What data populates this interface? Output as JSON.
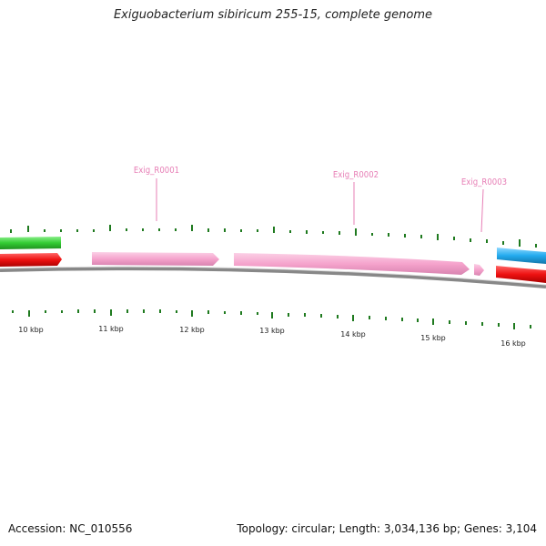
{
  "header": {
    "title": "Exiguobacterium sibiricum 255-15, complete genome"
  },
  "footer": {
    "accession": "Accession: NC_010556",
    "summary": "Topology: circular; Length: 3,034,136 bp; Genes: 3,104"
  },
  "genes": [
    {
      "label": "Exig_R0001"
    },
    {
      "label": "Exig_R0002"
    },
    {
      "label": "Exig_R0003"
    }
  ],
  "scale": {
    "labels": [
      "10 kbp",
      "11 kbp",
      "12 kbp",
      "13 kbp",
      "14 kbp",
      "15 kbp",
      "16 kbp"
    ]
  },
  "colors": {
    "rrna": "#f5a3cc",
    "forward_cds": "#ee1111",
    "reverse_cds": "#33cc33",
    "other": "#22aaee",
    "backbone": "#777777",
    "ticks": "#1f7a1f"
  }
}
